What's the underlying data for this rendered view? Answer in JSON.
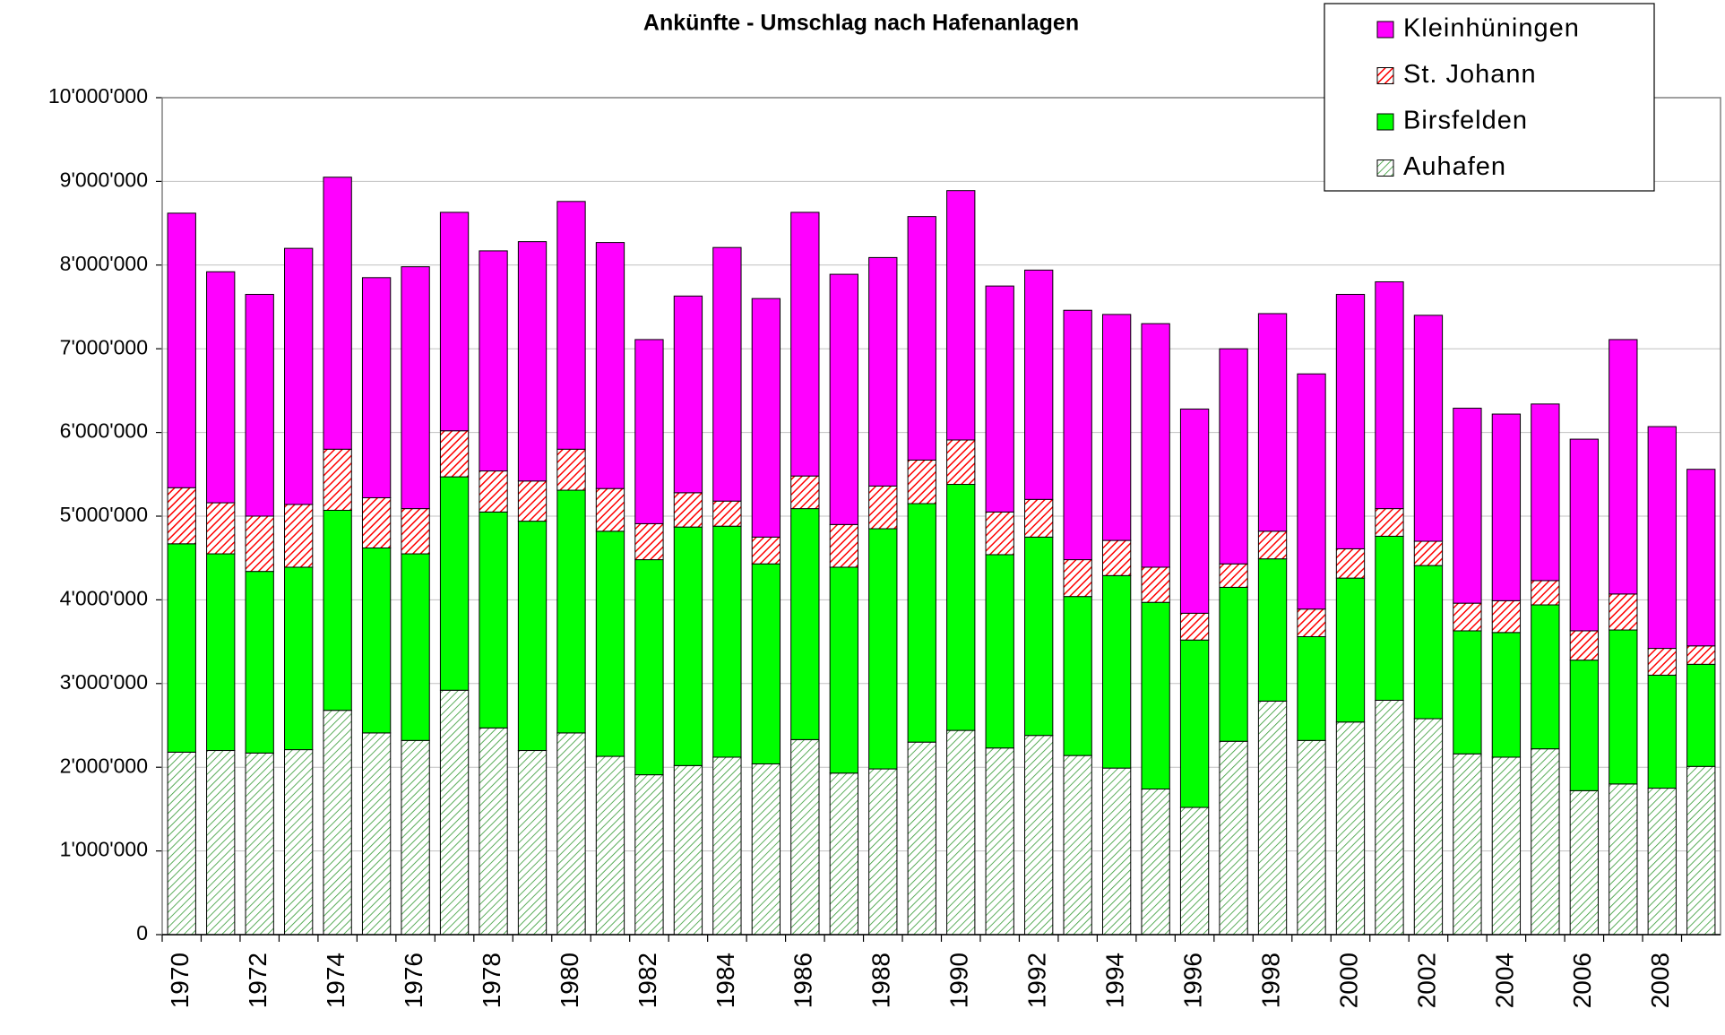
{
  "chart_data": {
    "type": "stacked_bar",
    "title": "Ankünfte - Umschlag nach Hafenanlagen",
    "categories": [
      "1970",
      null,
      "1972",
      null,
      "1974",
      null,
      "1976",
      null,
      "1978",
      null,
      "1980",
      null,
      "1982",
      null,
      "1984",
      null,
      "1986",
      null,
      "1988",
      null,
      "1990",
      null,
      "1992",
      null,
      "1994",
      null,
      "1996",
      null,
      "1998",
      null,
      "2000",
      null,
      "2002",
      null,
      "2004",
      null,
      "2006",
      null,
      "2008",
      null
    ],
    "series": [
      {
        "name": "Auhafen",
        "color": "#339933",
        "hatch": true,
        "values": [
          2180000,
          2200000,
          2170000,
          2210000,
          2680000,
          2410000,
          2320000,
          2920000,
          2470000,
          2200000,
          2410000,
          2130000,
          1910000,
          2020000,
          2120000,
          2040000,
          2330000,
          1930000,
          1980000,
          2300000,
          2440000,
          2230000,
          2380000,
          2140000,
          1990000,
          1740000,
          1520000,
          2310000,
          2790000,
          2320000,
          2540000,
          2800000,
          2580000,
          2160000,
          2120000,
          2220000,
          1720000,
          1800000,
          1750000,
          2010000
        ]
      },
      {
        "name": "Birsfelden",
        "color": "#00ff00",
        "hatch": false,
        "values": [
          2490000,
          2350000,
          2170000,
          2180000,
          2390000,
          2210000,
          2230000,
          2550000,
          2580000,
          2740000,
          2900000,
          2690000,
          2570000,
          2850000,
          2760000,
          2390000,
          2760000,
          2460000,
          2870000,
          2850000,
          2940000,
          2310000,
          2370000,
          1900000,
          2300000,
          2230000,
          2000000,
          1840000,
          1700000,
          1240000,
          1720000,
          1960000,
          1830000,
          1470000,
          1490000,
          1720000,
          1560000,
          1840000,
          1350000,
          1220000
        ]
      },
      {
        "name": "St. Johann",
        "color": "#ff0000",
        "hatch": true,
        "values": [
          670000,
          610000,
          660000,
          750000,
          730000,
          600000,
          540000,
          550000,
          490000,
          480000,
          490000,
          510000,
          430000,
          410000,
          300000,
          320000,
          390000,
          510000,
          510000,
          520000,
          530000,
          510000,
          450000,
          440000,
          420000,
          420000,
          320000,
          280000,
          330000,
          330000,
          350000,
          330000,
          290000,
          330000,
          380000,
          290000,
          350000,
          430000,
          320000,
          220000
        ]
      },
      {
        "name": "Kleinhüningen",
        "color": "#ff00ff",
        "hatch": false,
        "values": [
          3280000,
          2760000,
          2650000,
          3060000,
          3250000,
          2630000,
          2890000,
          2610000,
          2630000,
          2860000,
          2960000,
          2940000,
          2200000,
          2350000,
          3030000,
          2850000,
          3150000,
          2990000,
          2730000,
          2910000,
          2980000,
          2700000,
          2740000,
          2980000,
          2700000,
          2910000,
          2440000,
          2570000,
          2600000,
          2810000,
          3040000,
          2710000,
          2700000,
          2330000,
          2230000,
          2110000,
          2290000,
          3040000,
          2650000,
          2110000
        ]
      }
    ],
    "ylim": [
      0,
      10000000
    ],
    "yticks": [
      0,
      {
        "value": 1000000,
        "label": "1'000'000"
      },
      {
        "value": 2000000,
        "label": "2'000'000"
      },
      {
        "value": 3000000,
        "label": "3'000'000"
      },
      {
        "value": 4000000,
        "label": "4'000'000"
      },
      {
        "value": 5000000,
        "label": "5'000'000"
      },
      {
        "value": 6000000,
        "label": "6'000'000"
      },
      {
        "value": 7000000,
        "label": "7'000'000"
      },
      {
        "value": 8000000,
        "label": "8'000'000"
      },
      {
        "value": 9000000,
        "label": "9'000'000"
      },
      {
        "value": 10000000,
        "label": "10'000'000"
      }
    ],
    "grid": true,
    "legend": "top-right"
  }
}
